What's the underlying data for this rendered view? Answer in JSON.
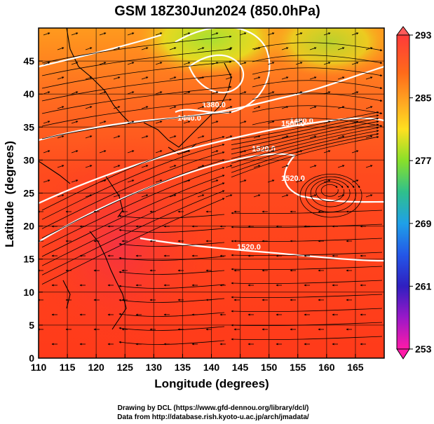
{
  "chart_data": {
    "type": "heatmap",
    "title": "GSM 18Z30Jun2024 (850.0hPa)",
    "xlabel": "Longitude (degrees)",
    "ylabel": "Latitude  (degrees)",
    "xlim": [
      110,
      170
    ],
    "ylim": [
      0,
      50
    ],
    "xticks": [
      "110",
      "115",
      "120",
      "125",
      "130",
      "135",
      "140",
      "145",
      "150",
      "155",
      "160",
      "165"
    ],
    "yticks": [
      "0",
      "5",
      "10",
      "15",
      "20",
      "25",
      "30",
      "35",
      "40",
      "45"
    ],
    "colorbar": {
      "ticks": [
        "293",
        "285",
        "277",
        "269",
        "261",
        "253"
      ],
      "colors": [
        "#ff3a3a",
        "#ff8a1a",
        "#ffcc22",
        "#88e02a",
        "#2fc08c",
        "#1fa0e8",
        "#2457e8",
        "#2f1fc0",
        "#9a18c8",
        "#ff1aa8"
      ]
    },
    "contour_labels": [
      "1380.0",
      "1440.0",
      "1500.0",
      "1480.0",
      "1520.0",
      "1520.0",
      "1520.0"
    ],
    "vector_field": "streamlines"
  },
  "credits": {
    "line1": "Drawing by DCL (https://www.gfd-dennou.org/library/dcl/)",
    "line2": "Data from http://database.rish.kyoto-u.ac.jp/arch/jmadata/"
  }
}
